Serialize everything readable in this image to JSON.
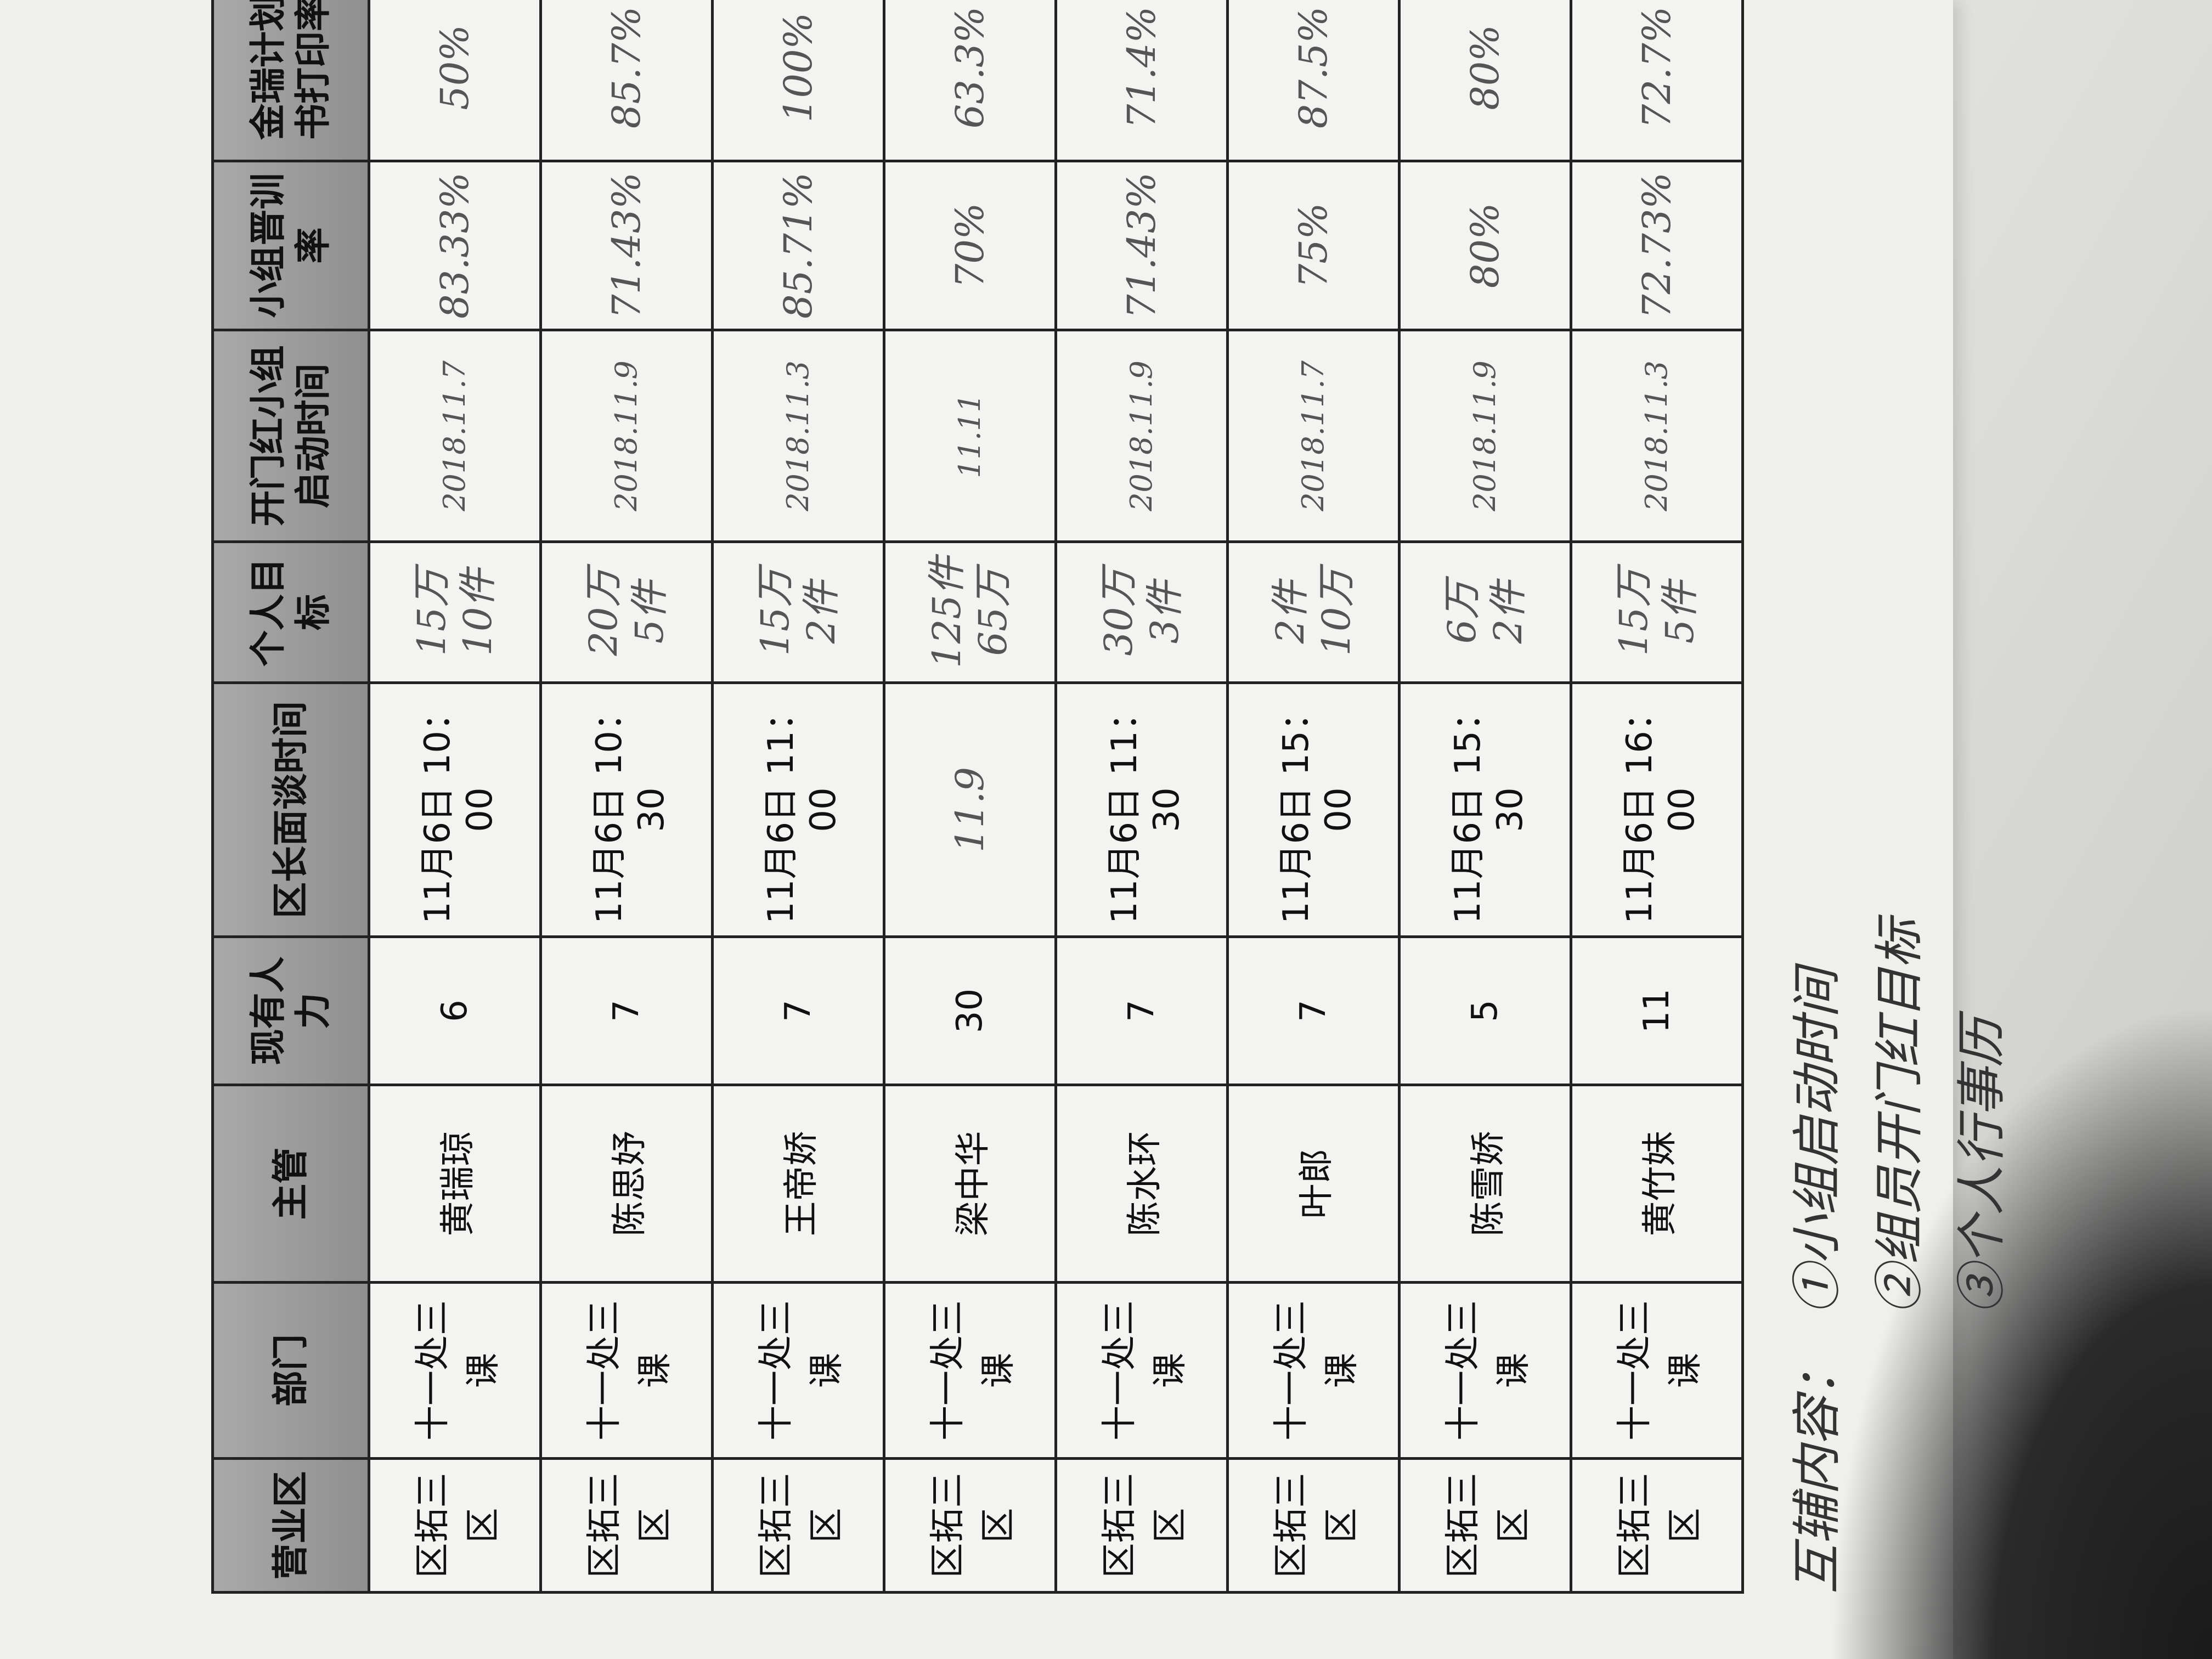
{
  "table": {
    "headers": [
      "营业区",
      "部门",
      "主管",
      "现有人力",
      "区长面谈时间",
      "个人目标",
      "开门红小组启动时间",
      "小组晋训率",
      "金瑞计划书打印率"
    ],
    "rows": [
      {
        "area": "区拓三区",
        "dept": "十一处三课",
        "supervisor": "黄瑞琼",
        "headcount": "6",
        "interview": "11月6日 10：00",
        "interview_note": "",
        "target": [
          "15万",
          "10件"
        ],
        "kickoff": "2018.11.7",
        "kickoff_note": "",
        "training": "83.33%",
        "print": "50%"
      },
      {
        "area": "区拓三区",
        "dept": "十一处三课",
        "supervisor": "陈思妤",
        "headcount": "7",
        "interview": "11月6日 10：30",
        "interview_note": "",
        "target": [
          "20万",
          "5件"
        ],
        "kickoff": "2018.11.9",
        "kickoff_note": "",
        "training": "71.43%",
        "print": "85.7%"
      },
      {
        "area": "区拓三区",
        "dept": "十一处三课",
        "supervisor": "王帝娇",
        "headcount": "7",
        "interview": "11月6日 11：00",
        "interview_note": "",
        "target": [
          "15万",
          "2件"
        ],
        "kickoff": "2018.11.3",
        "kickoff_note": "",
        "training": "85.71%",
        "print": "100%"
      },
      {
        "area": "区拓三区",
        "dept": "十一处三课",
        "supervisor": "梁中华",
        "headcount": "30",
        "interview": "",
        "interview_note": "11.9",
        "target": [
          "125件",
          "65万"
        ],
        "kickoff": "11.11",
        "kickoff_note": "",
        "training": "70%",
        "print": "63.3%"
      },
      {
        "area": "区拓三区",
        "dept": "十一处三课",
        "supervisor": "陈水环",
        "headcount": "7",
        "interview": "11月6日 11：30",
        "interview_note": "",
        "target": [
          "30万",
          "3件"
        ],
        "kickoff": "2018.11.9",
        "kickoff_note": "",
        "training": "71.43%",
        "print": "71.4%"
      },
      {
        "area": "区拓三区",
        "dept": "十一处三课",
        "supervisor": "叶郎",
        "headcount": "7",
        "interview": "11月6日 15：00",
        "interview_note": "",
        "target": [
          "2件",
          "10万"
        ],
        "kickoff": "2018.11.7",
        "kickoff_note": "",
        "training": "75%",
        "print": "87.5%"
      },
      {
        "area": "区拓三区",
        "dept": "十一处三课",
        "supervisor": "陈雪娇",
        "headcount": "5",
        "interview": "11月6日 15：30",
        "interview_note": "",
        "target": [
          "6万",
          "2件"
        ],
        "kickoff": "2018.11.9",
        "kickoff_note": "",
        "training": "80%",
        "print": "80%"
      },
      {
        "area": "区拓三区",
        "dept": "十一处三课",
        "supervisor": "黄竹妹",
        "headcount": "11",
        "interview": "11月6日 16：00",
        "interview_note": "",
        "target": [
          "15万",
          "5件"
        ],
        "kickoff": "2018.11.3",
        "kickoff_note": "",
        "training": "72.73%",
        "print": "72.7%"
      }
    ]
  },
  "notes": {
    "label": "互辅内容：",
    "items": [
      "①小组启动时间",
      "②组员开门红目标",
      "③个人行事历"
    ]
  }
}
